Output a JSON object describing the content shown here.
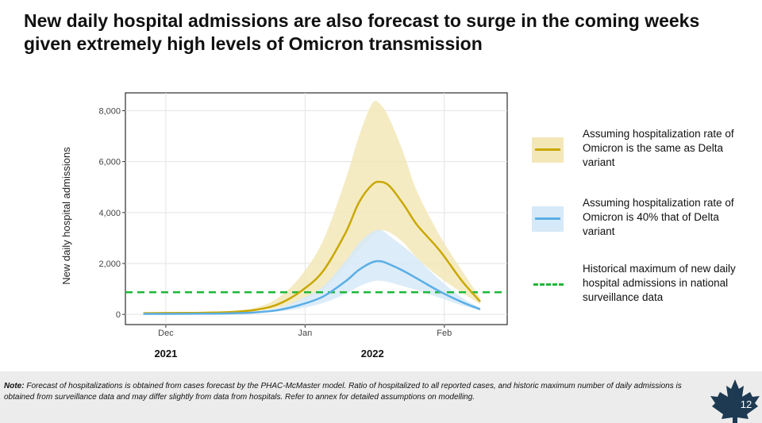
{
  "slide": {
    "title": "New daily hospital admissions are also forecast to surge in the coming weeks given extremely high levels of Omicron transmission",
    "page_number": "12",
    "note_label": "Note:",
    "note_text": " Forecast of hospitalizations is obtained from cases forecast by the PHAC-McMaster model. Ratio of hospitalized to all reported cases, and historic maximum number of daily admissions is obtained from surveillance data and may differ slightly from data from hospitals. Refer to annex for detailed assumptions on modelling."
  },
  "colors": {
    "delta_line": "#c9a800",
    "delta_band": "#f3e7b8",
    "omicron_line": "#5aaee5",
    "omicron_band": "#d6e9f8",
    "historical_max": "#1cb83a",
    "maple_leaf": "#1d3a52"
  },
  "legend": [
    {
      "id": "delta",
      "label": "Assuming hospitalization rate of Omicron is the same as Delta variant",
      "swatch": "line-with-band"
    },
    {
      "id": "omicron40",
      "label": "Assuming hospitalization rate of Omicron is 40% that of Delta variant",
      "swatch": "line-with-band"
    },
    {
      "id": "histmax",
      "label": "Historical maximum of new daily hospital admissions in national surveillance data",
      "swatch": "dashed-line"
    }
  ],
  "icons": [
    "maple-leaf-icon"
  ],
  "chart_data": {
    "type": "line",
    "title": "",
    "xlabel": "",
    "ylabel": "New daily hospital admissions",
    "x_ticks": [
      {
        "date": "2021-12-01",
        "label": "Dec"
      },
      {
        "date": "2022-01-01",
        "label": "Jan"
      },
      {
        "date": "2022-02-01",
        "label": "Feb"
      }
    ],
    "year_labels": [
      {
        "date": "2021-12-01",
        "label": "2021"
      },
      {
        "date": "2022-01-16",
        "label": "2022"
      }
    ],
    "xlim": [
      "2021-11-22",
      "2022-02-15"
    ],
    "ylim": [
      -400,
      8700
    ],
    "y_ticks": [
      0,
      2000,
      4000,
      6000,
      8000
    ],
    "y_tick_labels": [
      "0",
      "2,000",
      "4,000",
      "6,000",
      "8,000"
    ],
    "grid": true,
    "x": [
      "2021-11-26",
      "2021-12-01",
      "2021-12-06",
      "2021-12-11",
      "2021-12-16",
      "2021-12-21",
      "2021-12-26",
      "2021-12-31",
      "2022-01-05",
      "2022-01-10",
      "2022-01-13",
      "2022-01-16",
      "2022-01-18",
      "2022-01-20",
      "2022-01-23",
      "2022-01-26",
      "2022-01-31",
      "2022-02-05",
      "2022-02-09"
    ],
    "series": [
      {
        "id": "delta",
        "values": [
          50,
          55,
          60,
          70,
          100,
          180,
          400,
          900,
          1700,
          3200,
          4400,
          5100,
          5200,
          5000,
          4300,
          3500,
          2500,
          1300,
          500
        ],
        "lower": [
          45,
          48,
          52,
          60,
          80,
          130,
          260,
          550,
          1000,
          1900,
          2500,
          3100,
          3300,
          3200,
          2800,
          2200,
          1450,
          850,
          400
        ],
        "upper": [
          60,
          65,
          75,
          90,
          140,
          260,
          650,
          1500,
          2900,
          5300,
          7000,
          8300,
          8200,
          7600,
          6300,
          4800,
          3100,
          1700,
          650
        ]
      },
      {
        "id": "omicron40",
        "values": [
          20,
          22,
          25,
          30,
          45,
          80,
          170,
          380,
          700,
          1300,
          1750,
          2050,
          2080,
          1950,
          1700,
          1400,
          900,
          480,
          200
        ],
        "lower": [
          18,
          20,
          22,
          27,
          38,
          60,
          115,
          240,
          450,
          800,
          1100,
          1300,
          1320,
          1250,
          1100,
          950,
          650,
          350,
          160
        ],
        "upper": [
          25,
          28,
          32,
          40,
          60,
          110,
          250,
          600,
          1100,
          2100,
          2800,
          3250,
          3300,
          3050,
          2650,
          2200,
          1350,
          650,
          250
        ]
      }
    ],
    "reference_lines": [
      {
        "id": "histmax",
        "y": 870,
        "style": "dashed"
      }
    ]
  }
}
